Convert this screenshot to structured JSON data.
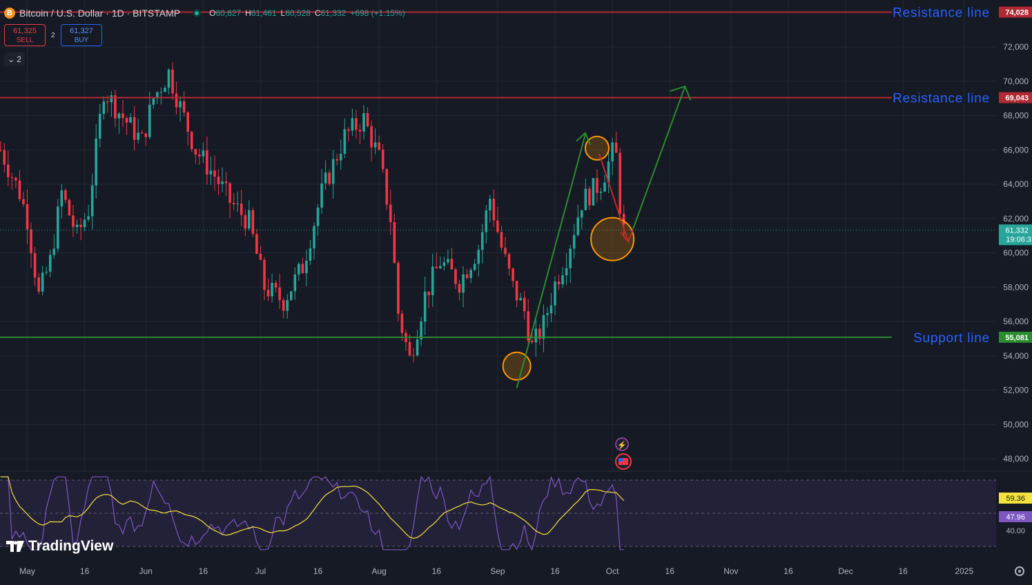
{
  "symbol": {
    "title": "Bitcoin / U.S. Dollar · 1D · BITSTAMP",
    "icon_glyph": "B",
    "ohlc": {
      "open_label": "O",
      "open": "60,627",
      "high_label": "H",
      "high": "61,461",
      "low_label": "L",
      "low": "60,528",
      "close_label": "C",
      "close": "61,332",
      "change": "+698 (+1.15%)"
    }
  },
  "trade": {
    "sell_price": "61,325",
    "sell_label": "SELL",
    "spread": "2",
    "buy_price": "61,327",
    "buy_label": "BUY"
  },
  "indicators_toggle": {
    "count": "2"
  },
  "colors": {
    "up": "#26a69a",
    "down": "#f23645",
    "resistance": "#b22833",
    "support": "#2a8c2f",
    "annotation_text": "#2962ff",
    "rsi": "#7e57c2",
    "rsi_ma": "#f5e33b"
  },
  "chart_data": {
    "type": "candlestick",
    "interval": "1D",
    "y_axis": {
      "min": 46000,
      "max": 76000,
      "ticks": [
        "72,000",
        "70,000",
        "68,000",
        "66,000",
        "64,000",
        "62,000",
        "60,000",
        "58,000",
        "56,000",
        "54,000",
        "52,000",
        "50,000",
        "48,000"
      ],
      "side": "right"
    },
    "x_axis": {
      "ticks": [
        "May",
        "16",
        "Jun",
        "16",
        "Jul",
        "16",
        "Aug",
        "16",
        "Sep",
        "16",
        "Oct",
        "16",
        "Nov",
        "16",
        "Dec",
        "16",
        "2025"
      ]
    },
    "price_badges": [
      {
        "label": "74,028",
        "value": 74028,
        "color": "#b22833"
      },
      {
        "label": "69,043",
        "value": 69043,
        "color": "#b22833"
      },
      {
        "label": "55,081",
        "value": 55081,
        "color": "#2a8c2f"
      }
    ],
    "current_price": {
      "label": "61,332",
      "countdown": "19:06:3",
      "value": 61332
    },
    "horizontal_lines": [
      {
        "name": "resistance-74k",
        "text": "Resistance line",
        "value": 74028,
        "color": "#b22833"
      },
      {
        "name": "resistance-69k",
        "text": "Resistance line",
        "value": 69043,
        "color": "#b22833"
      },
      {
        "name": "support-55k",
        "text": "Support line",
        "value": 55081,
        "color": "#2a8c2f"
      }
    ],
    "pattern_points": [
      {
        "name": "sep-low-circle",
        "date": "2024-09-06",
        "price": 53400
      },
      {
        "name": "sep-top-circle",
        "date": "2024-09-27",
        "price": 66100
      },
      {
        "name": "oct-low-circle",
        "date": "2024-10-01",
        "price": 60800
      }
    ],
    "rsi": {
      "value": "47.96",
      "ma_value": "59.36",
      "ticks": [
        "40.00"
      ],
      "bands": [
        30,
        70
      ]
    }
  }
}
